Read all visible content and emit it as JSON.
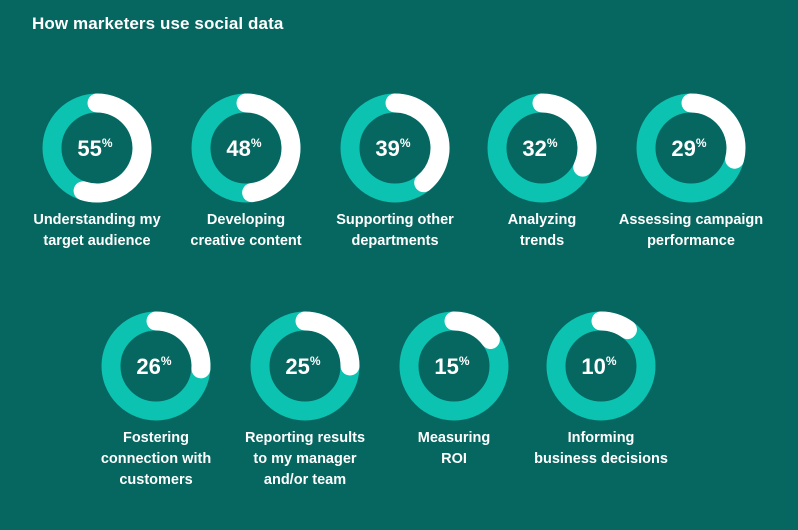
{
  "title": "How marketers use social data",
  "colors": {
    "background": "#066660",
    "ring": "#0cc2b1",
    "fill": "#ffffff"
  },
  "chart_data": {
    "type": "donut",
    "title": "How marketers use social data",
    "unit": "%",
    "items": [
      {
        "value": 55,
        "label_lines": [
          "Understanding my",
          "target audience"
        ]
      },
      {
        "value": 48,
        "label_lines": [
          "Developing",
          "creative content"
        ]
      },
      {
        "value": 39,
        "label_lines": [
          "Supporting other",
          "departments"
        ]
      },
      {
        "value": 32,
        "label_lines": [
          "Analyzing",
          "trends"
        ]
      },
      {
        "value": 29,
        "label_lines": [
          "Assessing campaign",
          "performance"
        ]
      },
      {
        "value": 26,
        "label_lines": [
          "Fostering",
          "connection with",
          "customers"
        ]
      },
      {
        "value": 25,
        "label_lines": [
          "Reporting results",
          "to my manager",
          "and/or team"
        ]
      },
      {
        "value": 15,
        "label_lines": [
          "Measuring",
          "ROI"
        ]
      },
      {
        "value": 10,
        "label_lines": [
          "Informing",
          "business decisions"
        ]
      }
    ]
  }
}
